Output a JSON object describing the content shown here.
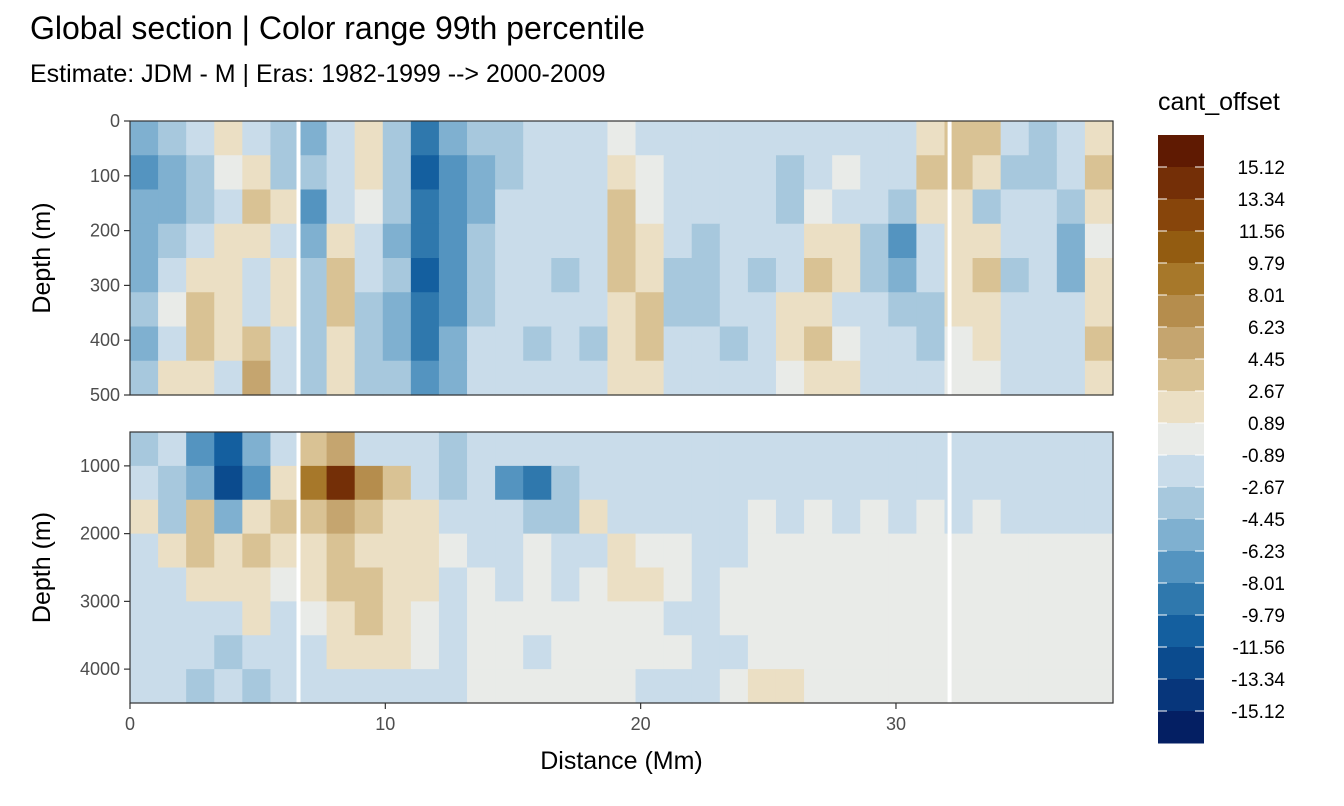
{
  "title": "Global section | Color range 99th percentile",
  "subtitle": "Estimate: JDM - M | Eras: 1982-1999 --> 2000-2009",
  "chart_data": {
    "type": "heatmap",
    "xlabel": "Distance (Mm)",
    "ylabel": "Depth (m)",
    "xlim": [
      0,
      38.5
    ],
    "x_ticks": [
      "0",
      "10",
      "20",
      "30"
    ],
    "panels": [
      {
        "name": "upper",
        "ylim": [
          0,
          500
        ],
        "y_ticks": [
          "0",
          "100",
          "200",
          "300",
          "400",
          "500"
        ]
      },
      {
        "name": "lower",
        "ylim": [
          500,
          4500
        ],
        "y_ticks": [
          "1000",
          "2000",
          "3000",
          "4000"
        ]
      }
    ],
    "legend": {
      "title": "cant_offset",
      "breaks": [
        "15.12",
        "13.34",
        "11.56",
        "9.79",
        "8.01",
        "6.23",
        "4.45",
        "2.67",
        "0.89",
        "-0.89",
        "-2.67",
        "-4.45",
        "-6.23",
        "-8.01",
        "-9.79",
        "-11.56",
        "-13.34",
        "-15.12"
      ],
      "colors": [
        "#5f1a02",
        "#742f07",
        "#87450b",
        "#935c11",
        "#a7782a",
        "#b58d4d",
        "#c5a56f",
        "#d9c294",
        "#ebdfc4",
        "#e9ebe8",
        "#c9dcea",
        "#a7c8dd",
        "#7fb0d0",
        "#5494c0",
        "#2f78ad",
        "#145f9f",
        "#0b4b8e",
        "#07367b",
        "#041f63"
      ]
    },
    "gaps_x": [
      6.6,
      32.1
    ],
    "upper_field": [
      [
        -6,
        -4,
        -2,
        1,
        -2,
        -3,
        -5,
        -1,
        2,
        -3,
        -9,
        -6,
        -4,
        -3,
        -2,
        -1,
        -1,
        0,
        -1,
        -2,
        -1,
        -2,
        -1,
        -2,
        -1,
        -1,
        -2,
        -1,
        2,
        3,
        3,
        -2,
        -4,
        -2,
        2
      ],
      [
        -7,
        -5,
        -3,
        0,
        1,
        -4,
        -4,
        -2,
        1,
        -4,
        -10,
        -7,
        -5,
        -3,
        -2,
        -1,
        -2,
        1,
        0,
        -1,
        -2,
        -2,
        -1,
        -3,
        -1,
        0,
        -1,
        -2,
        3,
        3,
        2,
        -3,
        -3,
        -1,
        3
      ],
      [
        -6,
        -5,
        -4,
        -1,
        3,
        2,
        -8,
        -2,
        0,
        -4,
        -9,
        -8,
        -5,
        -2,
        -2,
        -1,
        -2,
        3,
        0,
        -2,
        -2,
        -2,
        -2,
        -3,
        0,
        -1,
        -1,
        -3,
        2,
        2,
        -3,
        -1,
        -2,
        -3,
        1
      ],
      [
        -5,
        -3,
        -2,
        2,
        1,
        -1,
        -6,
        1,
        -1,
        -5,
        -9,
        -8,
        -4,
        -1,
        -1,
        -2,
        -1,
        4,
        1,
        -2,
        -4,
        -1,
        -2,
        -2,
        1,
        1,
        -3,
        -7,
        -1,
        1,
        2,
        -2,
        -1,
        -6,
        0
      ],
      [
        -6,
        -2,
        1,
        2,
        -1,
        2,
        -4,
        3,
        -2,
        -4,
        -10,
        -7,
        -4,
        -2,
        -1,
        -3,
        -2,
        3,
        2,
        -3,
        -4,
        -1,
        -3,
        -1,
        3,
        1,
        -3,
        -6,
        -2,
        2,
        3,
        -3,
        -2,
        -5,
        1
      ],
      [
        -4,
        0,
        3,
        1,
        -2,
        1,
        -3,
        4,
        -3,
        -5,
        -9,
        -7,
        -3,
        -2,
        -2,
        -2,
        -2,
        1,
        3,
        -4,
        -3,
        -2,
        -2,
        2,
        1,
        -1,
        -2,
        -3,
        -3,
        1,
        2,
        -2,
        -1,
        -2,
        2
      ],
      [
        -5,
        -2,
        3,
        2,
        4,
        -1,
        -4,
        2,
        -4,
        -5,
        -9,
        -6,
        -2,
        -1,
        -3,
        -2,
        -3,
        2,
        4,
        -2,
        -2,
        -3,
        -1,
        1,
        3,
        0,
        -1,
        -2,
        -4,
        0,
        1,
        -2,
        -2,
        -1,
        3
      ],
      [
        -3,
        1,
        2,
        -1,
        5,
        -2,
        -3,
        1,
        -3,
        -4,
        -8,
        -6,
        -2,
        -2,
        -2,
        -2,
        -2,
        1,
        2,
        -2,
        -1,
        -2,
        -2,
        0,
        2,
        1,
        -2,
        -2,
        -2,
        0,
        0,
        -1,
        -1,
        -2,
        2
      ]
    ],
    "lower_field": [
      [
        -3,
        -2,
        -8,
        -11,
        -6,
        -1,
        4,
        5,
        -1,
        -2,
        -2,
        -4,
        -1,
        -1,
        -2,
        -2,
        -1,
        -1,
        -1,
        -1,
        -2,
        -1,
        -1,
        -2,
        -1,
        -2,
        -2,
        -1,
        -1,
        -1,
        -2,
        -2,
        -2,
        -1,
        -1
      ],
      [
        -2,
        -4,
        -6,
        -13,
        -8,
        2,
        9,
        14,
        8,
        3,
        -1,
        -3,
        -2,
        -7,
        -9,
        -3,
        -1,
        -1,
        -1,
        -1,
        -1,
        -1,
        -1,
        -1,
        -1,
        -1,
        -1,
        -1,
        -1,
        -1,
        -1,
        -2,
        -2,
        -1,
        -1
      ],
      [
        2,
        -3,
        3,
        -5,
        1,
        3,
        4,
        5,
        3,
        2,
        1,
        -2,
        -1,
        -1,
        -3,
        -4,
        1,
        -1,
        -1,
        -1,
        -1,
        -1,
        0,
        -1,
        0,
        -1,
        0,
        -1,
        0,
        -1,
        0,
        -1,
        -1,
        -1,
        -1
      ],
      [
        -1,
        2,
        3,
        2,
        3,
        1,
        2,
        3,
        2,
        2,
        1,
        0,
        -1,
        -1,
        0,
        -2,
        -1,
        1,
        0,
        0,
        -1,
        -1,
        0,
        0,
        0,
        0,
        0,
        0,
        0,
        0,
        0,
        0,
        0,
        0,
        0
      ],
      [
        -1,
        -1,
        1,
        1,
        2,
        0,
        1,
        3,
        4,
        2,
        1,
        -1,
        0,
        -1,
        0,
        -1,
        0,
        1,
        1,
        0,
        -1,
        0,
        0,
        0,
        0,
        0,
        0,
        0,
        0,
        0,
        0,
        0,
        0,
        0,
        0
      ],
      [
        -2,
        -1,
        -2,
        -1,
        1,
        -1,
        0,
        2,
        3,
        1,
        0,
        -1,
        0,
        0,
        0,
        0,
        0,
        0,
        0,
        -1,
        -1,
        0,
        0,
        0,
        0,
        0,
        0,
        0,
        0,
        0,
        0,
        0,
        0,
        0,
        0
      ],
      [
        -2,
        -1,
        -2,
        -3,
        -2,
        -1,
        -1,
        1,
        1,
        1,
        0,
        -1,
        0,
        0,
        -1,
        0,
        0,
        0,
        0,
        0,
        -1,
        -1,
        0,
        0,
        0,
        0,
        0,
        0,
        0,
        0,
        0,
        0,
        0,
        0,
        0
      ],
      [
        -1,
        -2,
        -3,
        -2,
        -3,
        -1,
        -2,
        -2,
        -2,
        -1,
        -1,
        -1,
        0,
        0,
        0,
        0,
        0,
        0,
        -1,
        -1,
        -1,
        0,
        1,
        1,
        0,
        0,
        0,
        0,
        0,
        0,
        0,
        0,
        0,
        0,
        0
      ]
    ]
  }
}
